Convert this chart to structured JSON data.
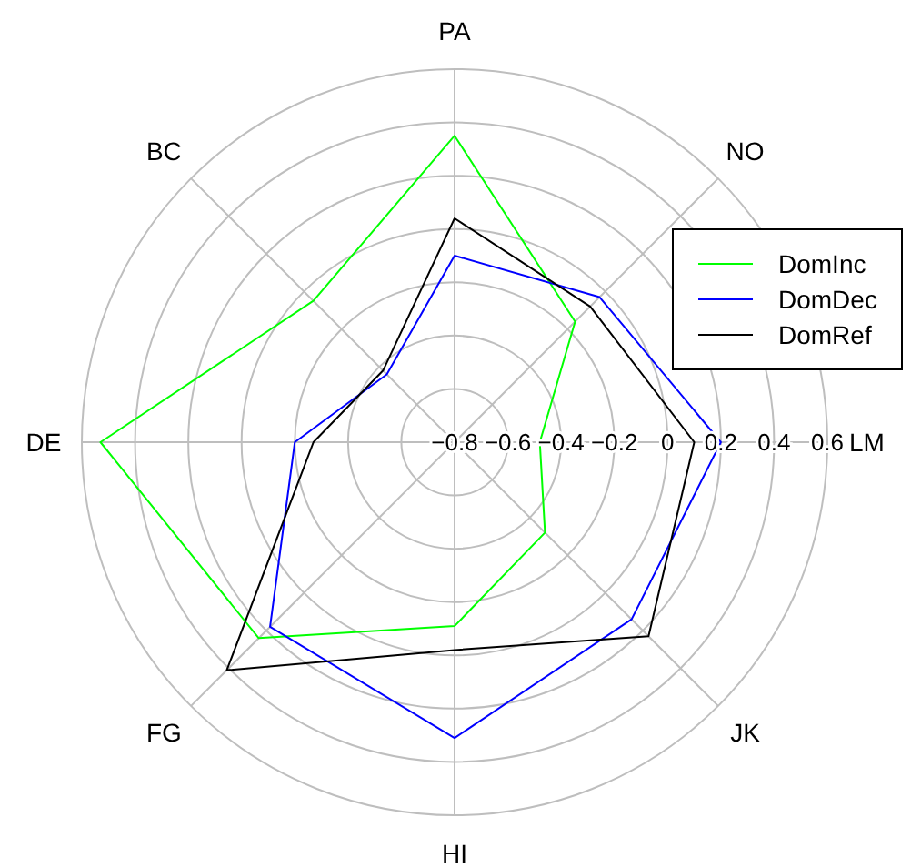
{
  "chart_data": {
    "type": "radar",
    "categories": [
      "PA",
      "NO",
      "LM",
      "JK",
      "HI",
      "FG",
      "DE",
      "BC"
    ],
    "series": [
      {
        "name": "DomInc",
        "color": "#00ff00",
        "values": [
          0.35,
          -0.16,
          -0.48,
          -0.32,
          -0.11,
          0.24,
          0.53,
          -0.05
        ]
      },
      {
        "name": "DomDec",
        "color": "#0000ff",
        "values": [
          -0.1,
          -0.03,
          0.2,
          0.14,
          0.31,
          0.18,
          -0.2,
          -0.44
        ]
      },
      {
        "name": "DomRef",
        "color": "#000000",
        "values": [
          0.04,
          -0.08,
          0.1,
          0.23,
          -0.02,
          0.41,
          -0.27,
          -0.42
        ]
      }
    ],
    "ylim": [
      -0.8,
      0.6
    ],
    "yticks": [
      -0.8,
      -0.6,
      -0.4,
      -0.2,
      0,
      0.2,
      0.4,
      0.6
    ],
    "grid": true,
    "legend": "right"
  }
}
